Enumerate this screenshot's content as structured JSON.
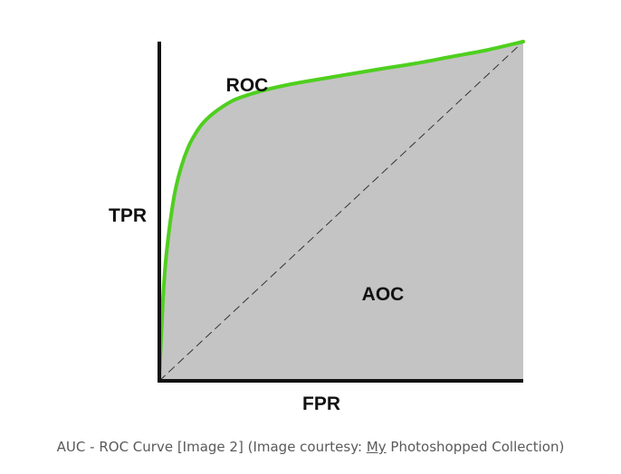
{
  "chart_data": {
    "type": "area",
    "xlabel": "FPR",
    "ylabel": "TPR",
    "xlim": [
      0,
      1
    ],
    "ylim": [
      0,
      1
    ],
    "grid": false,
    "series": [
      {
        "name": "ROC",
        "x": [
          0,
          0.01,
          0.02,
          0.04,
          0.06,
          0.08,
          0.1,
          0.12,
          0.15,
          0.2,
          0.25,
          0.3,
          0.35,
          0.4,
          0.5,
          0.6,
          0.7,
          0.8,
          0.9,
          1.0
        ],
        "y": [
          0,
          0.24,
          0.38,
          0.54,
          0.63,
          0.69,
          0.73,
          0.76,
          0.79,
          0.825,
          0.845,
          0.86,
          0.872,
          0.882,
          0.9,
          0.918,
          0.935,
          0.955,
          0.975,
          1.0
        ]
      },
      {
        "name": "",
        "x": [
          0,
          1
        ],
        "y": [
          0,
          1
        ]
      }
    ],
    "annotations": [
      "ROC",
      "AOC"
    ],
    "colors": {
      "roc": "#4fcf1f",
      "fill": "#c4c4c4",
      "axes": "#111111",
      "diagonal": "#333333"
    }
  },
  "caption": {
    "before": "AUC - ROC Curve [Image 2] (Image courtesy: ",
    "link": "My",
    "after": " Photoshopped Collection)"
  }
}
